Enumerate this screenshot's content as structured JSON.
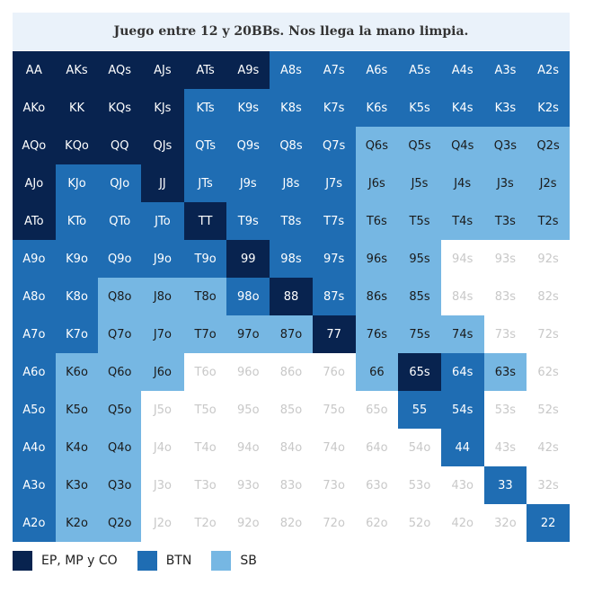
{
  "chart_data": {
    "type": "heatmap",
    "title": "Juego entre 12 y 20BBs. Nos llega la mano limpia.",
    "legend": [
      {
        "label": "EP, MP y CO",
        "key": "E",
        "color": "#08234f"
      },
      {
        "label": "BTN",
        "key": "B",
        "color": "#1f6db3"
      },
      {
        "label": "SB",
        "key": "S",
        "color": "#76b7e3"
      }
    ],
    "fold_text_color": "#c8c8c8",
    "rows": [
      [
        "AA",
        "AKs",
        "AQs",
        "AJs",
        "ATs",
        "A9s",
        "A8s",
        "A7s",
        "A6s",
        "A5s",
        "A4s",
        "A3s",
        "A2s"
      ],
      [
        "AKo",
        "KK",
        "KQs",
        "KJs",
        "KTs",
        "K9s",
        "K8s",
        "K7s",
        "K6s",
        "K5s",
        "K4s",
        "K3s",
        "K2s"
      ],
      [
        "AQo",
        "KQo",
        "QQ",
        "QJs",
        "QTs",
        "Q9s",
        "Q8s",
        "Q7s",
        "Q6s",
        "Q5s",
        "Q4s",
        "Q3s",
        "Q2s"
      ],
      [
        "AJo",
        "KJo",
        "QJo",
        "JJ",
        "JTs",
        "J9s",
        "J8s",
        "J7s",
        "J6s",
        "J5s",
        "J4s",
        "J3s",
        "J2s"
      ],
      [
        "ATo",
        "KTo",
        "QTo",
        "JTo",
        "TT",
        "T9s",
        "T8s",
        "T7s",
        "T6s",
        "T5s",
        "T4s",
        "T3s",
        "T2s"
      ],
      [
        "A9o",
        "K9o",
        "Q9o",
        "J9o",
        "T9o",
        "99",
        "98s",
        "97s",
        "96s",
        "95s",
        "94s",
        "93s",
        "92s"
      ],
      [
        "A8o",
        "K8o",
        "Q8o",
        "J8o",
        "T8o",
        "98o",
        "88",
        "87s",
        "86s",
        "85s",
        "84s",
        "83s",
        "82s"
      ],
      [
        "A7o",
        "K7o",
        "Q7o",
        "J7o",
        "T7o",
        "97o",
        "87o",
        "77",
        "76s",
        "75s",
        "74s",
        "73s",
        "72s"
      ],
      [
        "A6o",
        "K6o",
        "Q6o",
        "J6o",
        "T6o",
        "96o",
        "86o",
        "76o",
        "66",
        "65s",
        "64s",
        "63s",
        "62s"
      ],
      [
        "A5o",
        "K5o",
        "Q5o",
        "J5o",
        "T5o",
        "95o",
        "85o",
        "75o",
        "65o",
        "55",
        "54s",
        "53s",
        "52s"
      ],
      [
        "A4o",
        "K4o",
        "Q4o",
        "J4o",
        "T4o",
        "94o",
        "84o",
        "74o",
        "64o",
        "54o",
        "44",
        "43s",
        "42s"
      ],
      [
        "A3o",
        "K3o",
        "Q3o",
        "J3o",
        "T3o",
        "93o",
        "83o",
        "73o",
        "63o",
        "53o",
        "43o",
        "33",
        "32s"
      ],
      [
        "A2o",
        "K2o",
        "Q2o",
        "J2o",
        "T2o",
        "92o",
        "82o",
        "72o",
        "62o",
        "52o",
        "42o",
        "32o",
        "22"
      ]
    ],
    "categories": [
      "EEEEEEBBBBBBB",
      "EEEEBBBBBBBBB",
      "EEEEBBBBSSSSS",
      "EBBEBBBBSSSSS",
      "EBBBEBBBSSSSS",
      "BBBBBEBBSS...",
      "BBSSSBEBSS...",
      "BBSSSSSESSS..",
      "BSSS....SEBS.",
      "BSS......BB..",
      "BSS.......B..",
      "BSS........B.",
      "BSS.........B"
    ]
  }
}
